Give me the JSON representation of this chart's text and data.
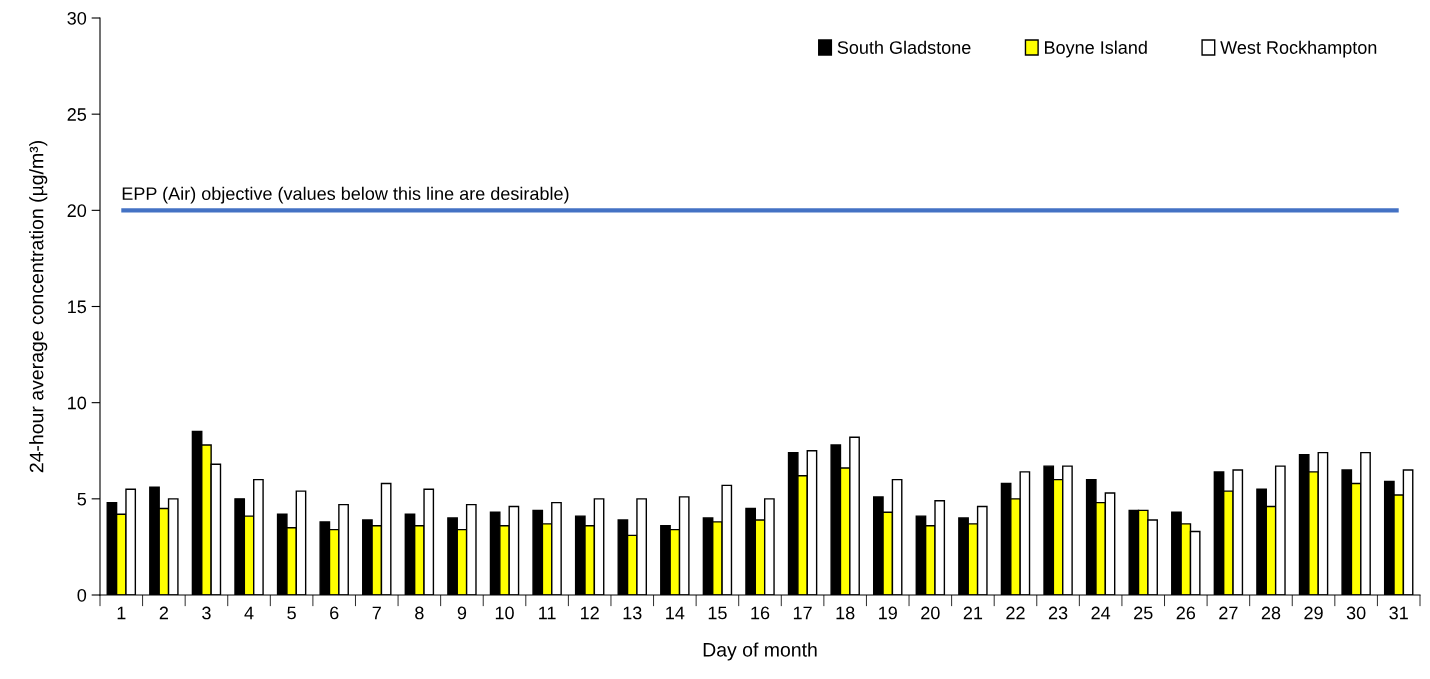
{
  "chart_data": {
    "type": "bar",
    "xlabel": "Day of month",
    "ylabel": "24-hour average concentration (µg/m³)",
    "categories": [
      "1",
      "2",
      "3",
      "4",
      "5",
      "6",
      "7",
      "8",
      "9",
      "10",
      "11",
      "12",
      "13",
      "14",
      "15",
      "16",
      "17",
      "18",
      "19",
      "20",
      "21",
      "22",
      "23",
      "24",
      "25",
      "26",
      "27",
      "28",
      "29",
      "30",
      "31"
    ],
    "series": [
      {
        "name": "South Gladstone",
        "color": "#000000",
        "values": [
          4.8,
          5.6,
          8.5,
          5.0,
          4.2,
          3.8,
          3.9,
          4.2,
          4.0,
          4.3,
          4.4,
          4.1,
          3.9,
          3.6,
          4.0,
          4.5,
          7.4,
          7.8,
          5.1,
          4.1,
          4.0,
          5.8,
          6.7,
          6.0,
          4.4,
          4.3,
          6.4,
          5.5,
          7.3,
          6.5,
          5.9
        ]
      },
      {
        "name": "Boyne Island",
        "color": "#ffff00",
        "values": [
          4.2,
          4.5,
          7.8,
          4.1,
          3.5,
          3.4,
          3.6,
          3.6,
          3.4,
          3.6,
          3.7,
          3.6,
          3.1,
          3.4,
          3.8,
          3.9,
          6.2,
          6.6,
          4.3,
          3.6,
          3.7,
          5.0,
          6.0,
          4.8,
          4.4,
          3.7,
          5.4,
          4.6,
          6.4,
          5.8,
          5.2
        ]
      },
      {
        "name": "West Rockhampton",
        "color": "#ffffff",
        "values": [
          5.5,
          5.0,
          6.8,
          6.0,
          5.4,
          4.7,
          5.8,
          5.5,
          4.7,
          4.6,
          4.8,
          5.0,
          5.0,
          5.1,
          5.7,
          5.0,
          7.5,
          8.2,
          6.0,
          4.9,
          4.6,
          6.4,
          6.7,
          5.3,
          3.9,
          3.3,
          6.5,
          6.7,
          7.4,
          7.4,
          6.5
        ]
      }
    ],
    "ylim": [
      0,
      30
    ],
    "yticks": [
      0,
      5,
      10,
      15,
      20,
      25,
      30
    ],
    "ref_lines": [
      {
        "axis": "y",
        "value": 20,
        "label": "EPP (Air) objective (values below this line are desirable)",
        "color": "#4472c4",
        "line_style": "solid"
      }
    ],
    "grid": false,
    "legend": "top right"
  }
}
